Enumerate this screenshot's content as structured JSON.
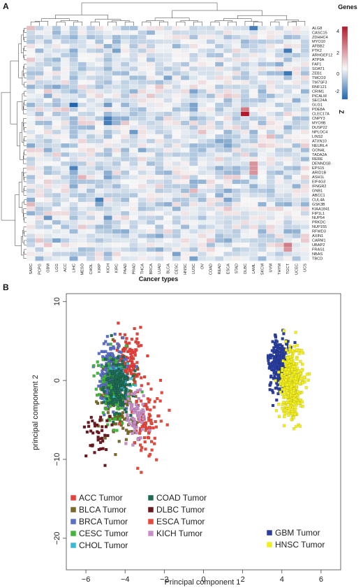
{
  "panels": {
    "a_label": "A",
    "b_label": "B"
  },
  "chart_data": [
    {
      "type": "heatmap",
      "xlabel": "Cancer types",
      "colorbar": {
        "title": "Genes",
        "ticks": [
          "4",
          "2",
          "0",
          "-2"
        ],
        "label": "Z",
        "range": [
          -3,
          5
        ],
        "low_color": "#2166ac",
        "mid_color": "#f7f7f7",
        "high_color": "#b2182b"
      },
      "columns": [
        "SARC",
        "PCPG",
        "GBM",
        "LGG",
        "ACC",
        "LIHC",
        "MESO",
        "CHOL",
        "KIRP",
        "KICH",
        "KIRC",
        "PAAD",
        "PRAD",
        "THCA",
        "BRCA",
        "LUAD",
        "BLCA",
        "CESC",
        "HNSC",
        "LUSC",
        "OV",
        "COAD",
        "READ",
        "ESCA",
        "STAD",
        "DLBC",
        "LAML",
        "SKCM",
        "UVM",
        "THYM",
        "TGCT",
        "UCEC",
        "UCS"
      ],
      "rows": [
        "ALG8",
        "CASC15",
        "ZDHHC4",
        "MYO10",
        "AFBB2",
        "PTK2",
        "ARHGEF12",
        "ATP9A",
        "FAF1",
        "SOAT1",
        "ZEB1",
        "TMCO3",
        "TM7SF3",
        "RNF121",
        "CRIM1",
        "PICALM",
        "SEC24A",
        "GLG1",
        "PDE8A",
        "CLEC17A",
        "CNPY3",
        "MYO9B",
        "DUSP22",
        "NPLOC4",
        "LINS2",
        "ATXN10",
        "NEURL4",
        "GON4L",
        "TADA2A",
        "RERE",
        "DENND1B",
        "EPS15",
        "ARID1B",
        "ASH1L",
        "EIF4G3",
        "IFNGR2",
        "GNB1",
        "ABCC1",
        "CUL4A",
        "GSK3B",
        "KIAA1841",
        "FIP1L1",
        "NUP54",
        "PRKDC",
        "NUP155",
        "RFWD3",
        "AXIN1",
        "CARM1",
        "UBAP2",
        "FRAS1",
        "NBAS",
        "TBCD"
      ],
      "notable_cells": [
        {
          "row": "CLEC17A",
          "column": "DLBC",
          "value": 4.5
        },
        {
          "row": "PDE8A",
          "column": "DLBC",
          "value": 2.5
        },
        {
          "row": "UBAP2",
          "column": "TGCT",
          "value": 2.5
        },
        {
          "row": "FRAS1",
          "column": "TGCT",
          "value": 2.0
        },
        {
          "row": "DENND1B",
          "column": "LAML",
          "value": 2.0
        },
        {
          "row": "EPS15",
          "column": "LAML",
          "value": 2.0
        },
        {
          "row": "ARID1B",
          "column": "LAML",
          "value": 2.0
        },
        {
          "row": "GLG1",
          "column": "LIHC",
          "value": -3.0
        },
        {
          "row": "ALG8",
          "column": "LAML",
          "value": -2.5
        },
        {
          "row": "CNPY3",
          "column": "KICH",
          "value": -2.5
        },
        {
          "row": "MYO9B",
          "column": "KICH",
          "value": -2.5
        }
      ]
    },
    {
      "type": "scatter",
      "xlabel": "Principal component 1",
      "ylabel": "principal component 2",
      "xlim": [
        -7,
        7
      ],
      "ylim": [
        -24,
        11
      ],
      "xticks": [
        -6,
        -4,
        -2,
        0,
        2,
        4,
        6
      ],
      "yticks": [
        10,
        0,
        -10,
        -20
      ],
      "legend_left": [
        "ACC Tumor",
        "BLCA Tumor",
        "BRCA Tumor",
        "CESC Tumor",
        "CHOL Tumor"
      ],
      "legend_mid": [
        "COAD Tumor",
        "DLBC Tumor",
        "ESCA Tumor",
        "KICH Tumor"
      ],
      "legend_right": [
        "GBM Tumor",
        "HNSC Tumor"
      ],
      "series": [
        {
          "name": "ACC Tumor",
          "color": "#e8403a",
          "center": [
            -3.8,
            2.5
          ],
          "spread": [
            0.7,
            4.0
          ],
          "n": 120
        },
        {
          "name": "BLCA Tumor",
          "color": "#7a6a2a",
          "center": [
            -4.3,
            -2.5
          ],
          "spread": [
            0.9,
            4.5
          ],
          "n": 140
        },
        {
          "name": "BRCA Tumor",
          "color": "#5a6fc9",
          "center": [
            -4.7,
            0.8
          ],
          "spread": [
            0.6,
            3.5
          ],
          "n": 260
        },
        {
          "name": "CESC Tumor",
          "color": "#42b53a",
          "center": [
            -4.6,
            -1.2
          ],
          "spread": [
            0.7,
            4.0
          ],
          "n": 130
        },
        {
          "name": "CHOL Tumor",
          "color": "#3ab8d8",
          "center": [
            -4.2,
            0.0
          ],
          "spread": [
            0.5,
            2.5
          ],
          "n": 40
        },
        {
          "name": "COAD Tumor",
          "color": "#1d6b52",
          "center": [
            -4.4,
            -0.5
          ],
          "spread": [
            0.6,
            3.0
          ],
          "n": 150
        },
        {
          "name": "DLBC Tumor",
          "color": "#6a1820",
          "center": [
            -5.4,
            -7.0
          ],
          "spread": [
            0.6,
            3.0
          ],
          "n": 40
        },
        {
          "name": "ESCA Tumor",
          "color": "#e8473a",
          "center": [
            -3.0,
            -5.5
          ],
          "spread": [
            0.8,
            4.0
          ],
          "n": 90
        },
        {
          "name": "KICH Tumor",
          "color": "#c88ec8",
          "center": [
            -3.4,
            -4.5
          ],
          "spread": [
            0.5,
            3.0
          ],
          "n": 70
        },
        {
          "name": "GBM Tumor",
          "color": "#2a3ea0",
          "center": [
            3.9,
            2.0
          ],
          "spread": [
            0.5,
            3.0
          ],
          "n": 300
        },
        {
          "name": "HNSC Tumor",
          "color": "#f2ee1e",
          "center": [
            4.5,
            -0.5
          ],
          "spread": [
            0.5,
            3.8
          ],
          "n": 420
        }
      ]
    }
  ]
}
